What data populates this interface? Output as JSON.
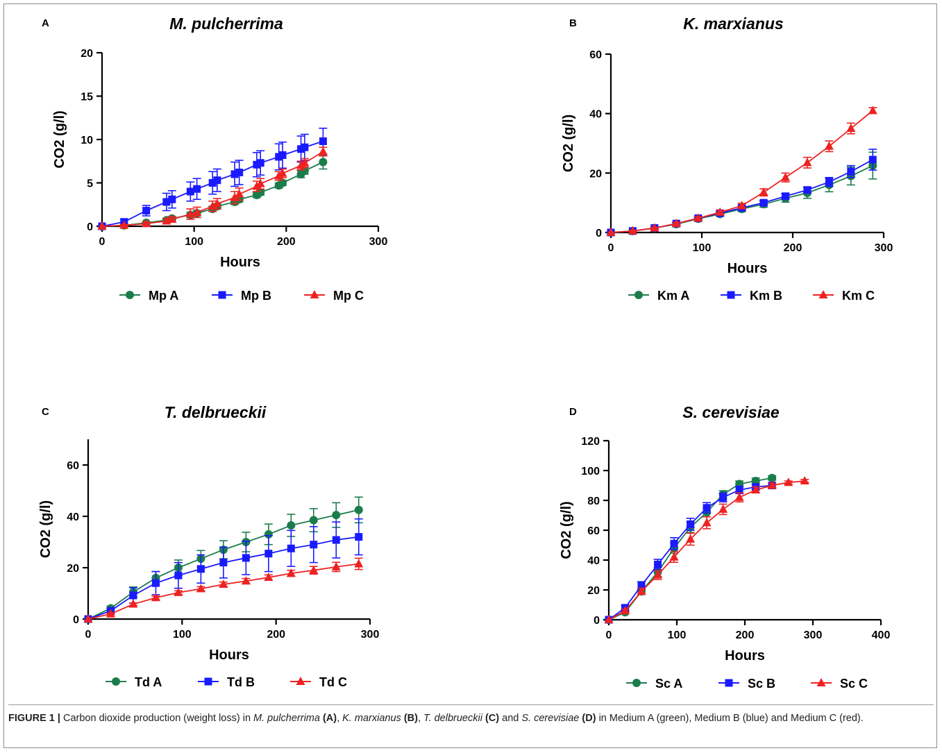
{
  "chart_data": [
    {
      "type": "line",
      "panel_label": "A",
      "title": "M. pulcherrima",
      "xlabel": "Hours",
      "ylabel": "CO2 (g/l)",
      "xlim": [
        0,
        300
      ],
      "ylim": [
        0,
        20
      ],
      "x_ticks": [
        0,
        100,
        200,
        300
      ],
      "y_ticks": [
        0,
        5,
        10,
        15,
        20
      ],
      "legend_position": "bottom",
      "series": [
        {
          "name": "Mp A",
          "color": "#1b7d4c",
          "marker": "circle",
          "x": [
            0,
            24,
            48,
            70,
            76,
            96,
            103,
            120,
            125,
            144,
            149,
            168,
            172,
            192,
            196,
            216,
            220,
            240
          ],
          "y": [
            0,
            0.1,
            0.4,
            0.7,
            0.9,
            1.3,
            1.5,
            2.0,
            2.3,
            2.8,
            3.1,
            3.6,
            3.9,
            4.7,
            5.0,
            6.0,
            6.4,
            7.4
          ],
          "err": [
            0,
            0.1,
            0.1,
            0.2,
            0.2,
            0.3,
            0.3,
            0.3,
            0.3,
            0.3,
            0.3,
            0.3,
            0.3,
            0.3,
            0.3,
            0.4,
            0.4,
            0.8
          ]
        },
        {
          "name": "Mp B",
          "color": "#1a1aff",
          "marker": "square",
          "x": [
            0,
            24,
            48,
            70,
            76,
            96,
            103,
            120,
            125,
            144,
            149,
            168,
            172,
            192,
            196,
            216,
            220,
            240
          ],
          "y": [
            0,
            0.5,
            1.8,
            2.8,
            3.1,
            4.0,
            4.3,
            5.0,
            5.3,
            6.0,
            6.2,
            7.1,
            7.3,
            8.0,
            8.2,
            8.9,
            9.1,
            9.8
          ],
          "err": [
            0,
            0.3,
            0.6,
            1.0,
            1.0,
            1.1,
            1.2,
            1.3,
            1.3,
            1.4,
            1.4,
            1.4,
            1.4,
            1.5,
            1.5,
            1.5,
            1.5,
            1.5
          ]
        },
        {
          "name": "Mp C",
          "color": "#ee2222",
          "marker": "triangle",
          "x": [
            0,
            24,
            48,
            70,
            76,
            96,
            103,
            120,
            125,
            144,
            149,
            168,
            172,
            192,
            196,
            216,
            220,
            240
          ],
          "y": [
            0,
            0.1,
            0.3,
            0.6,
            0.8,
            1.4,
            1.6,
            2.3,
            2.6,
            3.3,
            3.7,
            4.6,
            4.9,
            5.8,
            6.1,
            7.0,
            7.3,
            8.6
          ],
          "err": [
            0,
            0.1,
            0.2,
            0.3,
            0.3,
            0.6,
            0.6,
            0.6,
            0.6,
            0.7,
            0.7,
            0.6,
            0.6,
            0.5,
            0.5,
            0.5,
            0.5,
            0.5
          ]
        }
      ]
    },
    {
      "type": "line",
      "panel_label": "B",
      "title": "K. marxianus",
      "xlabel": "Hours",
      "ylabel": "CO2 (g/l)",
      "xlim": [
        0,
        300
      ],
      "ylim": [
        0,
        60
      ],
      "x_ticks": [
        0,
        100,
        200,
        300
      ],
      "y_ticks": [
        0,
        20,
        40,
        60
      ],
      "legend_position": "bottom",
      "series": [
        {
          "name": "Km A",
          "color": "#1b7d4c",
          "marker": "circle",
          "x": [
            0,
            24,
            48,
            72,
            96,
            120,
            144,
            168,
            192,
            216,
            240,
            264,
            288
          ],
          "y": [
            0,
            0.5,
            1.5,
            2.8,
            4.6,
            6.2,
            7.9,
            9.5,
            11.5,
            13.3,
            16.0,
            19.0,
            22.5
          ],
          "err": [
            0,
            0.2,
            0.4,
            0.5,
            0.6,
            0.7,
            0.9,
            1.0,
            1.3,
            1.8,
            2.3,
            3.0,
            4.5
          ]
        },
        {
          "name": "Km B",
          "color": "#1a1aff",
          "marker": "square",
          "x": [
            0,
            24,
            48,
            72,
            96,
            120,
            144,
            168,
            192,
            216,
            240,
            264,
            288
          ],
          "y": [
            0,
            0.5,
            1.5,
            3.0,
            4.8,
            6.5,
            8.3,
            10.0,
            12.2,
            14.3,
            17.0,
            20.5,
            24.5
          ],
          "err": [
            0,
            0.2,
            0.4,
            0.5,
            0.5,
            0.6,
            0.7,
            0.8,
            0.9,
            1.0,
            1.5,
            2.0,
            3.5
          ]
        },
        {
          "name": "Km C",
          "color": "#ee2222",
          "marker": "triangle",
          "x": [
            0,
            24,
            48,
            72,
            96,
            120,
            144,
            168,
            192,
            216,
            240,
            264,
            288
          ],
          "y": [
            0,
            0.5,
            1.5,
            3.0,
            4.8,
            6.8,
            9.0,
            13.5,
            18.5,
            23.5,
            29.0,
            35.0,
            41.0
          ],
          "err": [
            0,
            0.2,
            0.3,
            0.4,
            0.5,
            0.6,
            0.8,
            1.2,
            1.5,
            1.8,
            1.8,
            1.8,
            1.0
          ]
        }
      ]
    },
    {
      "type": "line",
      "panel_label": "C",
      "title": "T. delbrueckii",
      "xlabel": "Hours",
      "ylabel": "CO2 (g/l)",
      "xlim": [
        0,
        300
      ],
      "ylim": [
        0,
        70
      ],
      "x_ticks": [
        0,
        100,
        200,
        300
      ],
      "y_ticks": [
        0,
        20,
        40,
        60
      ],
      "legend_position": "bottom",
      "series": [
        {
          "name": "Td A",
          "color": "#1b7d4c",
          "marker": "circle",
          "x": [
            0,
            24,
            48,
            72,
            96,
            120,
            144,
            168,
            192,
            216,
            240,
            264,
            288
          ],
          "y": [
            0,
            4.2,
            10.5,
            16.0,
            20.0,
            23.5,
            27.0,
            30.0,
            33.0,
            36.5,
            38.5,
            40.5,
            42.5
          ],
          "err": [
            0,
            0.8,
            2.0,
            2.5,
            3.0,
            3.2,
            3.5,
            3.8,
            4.0,
            4.3,
            4.5,
            4.8,
            5.0
          ]
        },
        {
          "name": "Td B",
          "color": "#1a1aff",
          "marker": "square",
          "x": [
            0,
            24,
            48,
            72,
            96,
            120,
            144,
            168,
            192,
            216,
            240,
            264,
            288
          ],
          "y": [
            0,
            3.2,
            9.2,
            14.0,
            17.0,
            19.5,
            22.0,
            23.8,
            25.5,
            27.5,
            29.0,
            30.8,
            32.0
          ],
          "err": [
            0,
            0.8,
            3.0,
            4.5,
            5.0,
            5.5,
            6.0,
            6.5,
            7.0,
            7.0,
            7.0,
            7.0,
            7.0
          ]
        },
        {
          "name": "Td C",
          "color": "#ee2222",
          "marker": "triangle",
          "x": [
            0,
            24,
            48,
            72,
            96,
            120,
            144,
            168,
            192,
            216,
            240,
            264,
            288
          ],
          "y": [
            0,
            2.0,
            5.8,
            8.3,
            10.3,
            11.8,
            13.5,
            14.8,
            16.2,
            17.8,
            19.0,
            20.3,
            21.5
          ],
          "err": [
            0,
            0.3,
            0.5,
            0.6,
            0.7,
            0.8,
            0.9,
            1.0,
            1.0,
            1.2,
            1.5,
            1.8,
            2.2
          ]
        }
      ]
    },
    {
      "type": "line",
      "panel_label": "D",
      "title": "S. cerevisiae",
      "xlabel": "Hours",
      "ylabel": "CO2 (g/l)",
      "xlim": [
        0,
        400
      ],
      "ylim": [
        0,
        120
      ],
      "x_ticks": [
        0,
        100,
        200,
        300,
        400
      ],
      "y_ticks": [
        0,
        20,
        40,
        60,
        80,
        100,
        120
      ],
      "legend_position": "bottom",
      "series": [
        {
          "name": "Sc A",
          "color": "#1b7d4c",
          "marker": "circle",
          "x": [
            0,
            24,
            48,
            72,
            96,
            120,
            144,
            168,
            192,
            216,
            240
          ],
          "y": [
            0,
            5,
            19,
            32,
            48,
            62,
            72,
            84,
            91,
            93,
            95
          ],
          "err": [
            0,
            1.0,
            2.0,
            3.0,
            3.5,
            3.5,
            3.0,
            2.5,
            2.0,
            2.0,
            1.5
          ]
        },
        {
          "name": "Sc B",
          "color": "#1a1aff",
          "marker": "square",
          "x": [
            0,
            24,
            48,
            72,
            96,
            120,
            144,
            168,
            192,
            216,
            240
          ],
          "y": [
            0,
            8,
            23,
            37,
            51,
            64,
            75,
            82,
            87,
            89,
            90
          ],
          "err": [
            0,
            1.5,
            2.5,
            3.5,
            4.0,
            4.0,
            3.5,
            3.0,
            2.5,
            2.0,
            1.5
          ]
        },
        {
          "name": "Sc C",
          "color": "#ee2222",
          "marker": "triangle",
          "x": [
            0,
            24,
            48,
            72,
            96,
            120,
            144,
            168,
            192,
            216,
            240,
            264,
            288
          ],
          "y": [
            0,
            6,
            19,
            30,
            42,
            54,
            65,
            74,
            82,
            87,
            90,
            92,
            93
          ],
          "err": [
            0,
            1.0,
            2.0,
            3.0,
            3.5,
            4.0,
            4.0,
            3.5,
            3.0,
            2.0,
            1.5,
            1.0,
            1.0
          ]
        }
      ]
    }
  ],
  "caption": {
    "label": "FIGURE 1 |",
    "text_1": " Carbon dioxide production (weight loss) in ",
    "sp_a": "M. pulcherrima",
    "ref_a": " (A)",
    "sep_1": ", ",
    "sp_b": "K. marxianus",
    "ref_b": " (B)",
    "sep_2": ", ",
    "sp_c": "T. delbrueckii",
    "ref_c": " (C)",
    "sep_3": " and ",
    "sp_d": "S. cerevisiae",
    "ref_d": " (D)",
    "text_2": " in Medium A (green), Medium B (blue) and Medium C (red)."
  }
}
